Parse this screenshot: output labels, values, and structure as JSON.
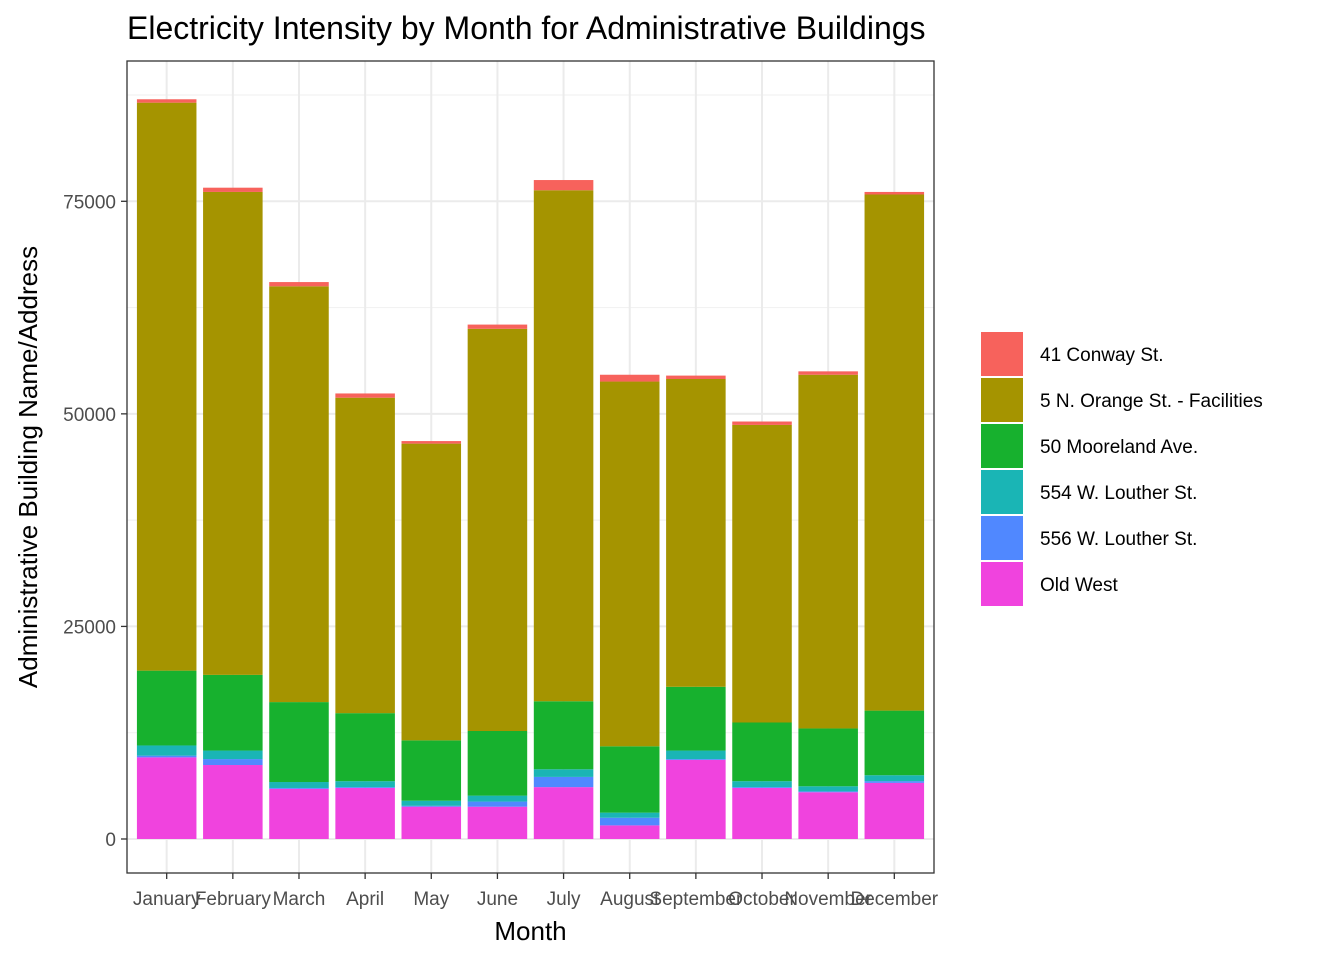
{
  "chart_data": {
    "type": "bar",
    "stacked": true,
    "title": "Electricity Intensity by Month for Administrative Buildings",
    "xlabel": "Month",
    "ylabel": "Administrative Building Name/Address",
    "ylim": [
      -4000,
      91500
    ],
    "yticks": [
      0,
      25000,
      50000,
      75000
    ],
    "categories": [
      "January",
      "February",
      "March",
      "April",
      "May",
      "June",
      "July",
      "August",
      "September",
      "October",
      "November",
      "December"
    ],
    "legend_position": "right",
    "series": [
      {
        "name": "Old West",
        "color": "#F043DE",
        "values": [
          9600,
          8700,
          5900,
          6000,
          3800,
          3800,
          6100,
          1600,
          9300,
          6000,
          5500,
          6600
        ]
      },
      {
        "name": "556 W. Louther St.",
        "color": "#5088FF",
        "values": [
          200,
          700,
          100,
          100,
          100,
          600,
          1200,
          900,
          100,
          100,
          100,
          200
        ]
      },
      {
        "name": "554 W. Louther St.",
        "color": "#1AB5B5",
        "values": [
          1200,
          1000,
          700,
          700,
          600,
          700,
          900,
          600,
          1000,
          700,
          600,
          700
        ]
      },
      {
        "name": "50 Mooreland Ave.",
        "color": "#17B12E",
        "values": [
          8800,
          8900,
          9400,
          8000,
          7100,
          7600,
          8000,
          7800,
          7500,
          6900,
          6800,
          7600
        ]
      },
      {
        "name": "5 N. Orange St. - Facilities",
        "color": "#A59400",
        "values": [
          66800,
          56800,
          48900,
          37100,
          34900,
          47300,
          60100,
          42900,
          36200,
          35000,
          41600,
          60700
        ]
      },
      {
        "name": "41 Conway St.",
        "color": "#F7625C",
        "values": [
          400,
          500,
          500,
          500,
          300,
          500,
          1200,
          800,
          400,
          400,
          400,
          300
        ]
      }
    ],
    "legend_order": [
      "41 Conway St.",
      "5 N. Orange St. - Facilities",
      "50 Mooreland Ave.",
      "554 W. Louther St.",
      "556 W. Louther St.",
      "Old West"
    ]
  }
}
